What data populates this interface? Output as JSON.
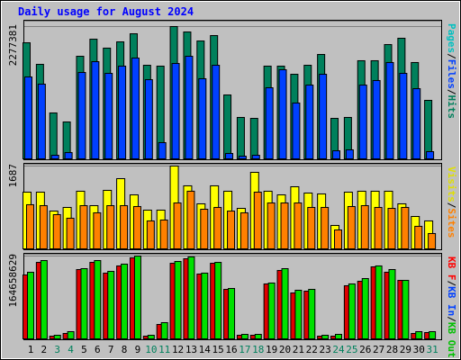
{
  "chart_data": [
    {
      "type": "bar",
      "title": "Daily usage for August 2024",
      "ylim": [
        0,
        2277381
      ],
      "yticks": [
        2277381
      ],
      "legend": [
        {
          "name": "Pages",
          "color": "#00c0c0"
        },
        {
          "name": "Files",
          "color": "#0040ff"
        },
        {
          "name": "Hits",
          "color": "#00805c"
        }
      ],
      "legend_separator": "/",
      "series": [
        {
          "color": "#00805c",
          "values": [
            1998000,
            1627000,
            790000,
            635000,
            1766000,
            2060000,
            1906000,
            2014000,
            2153000,
            1611000,
            1596000,
            2277381,
            2184000,
            2029000,
            2122000,
            1100000,
            713000,
            697000,
            1596000,
            1596000,
            1456000,
            1611000,
            1797000,
            697000,
            713000,
            1689000,
            1689000,
            1967000,
            2076000,
            1658000,
            1007000
          ]
        },
        {
          "color": "#0040ff",
          "values": [
            1410000,
            1286000,
            62000,
            108000,
            1487000,
            1673000,
            1472000,
            1596000,
            1735000,
            1363000,
            279000,
            1642000,
            1766000,
            1379000,
            1611000,
            93000,
            46000,
            62000,
            1224000,
            1534000,
            961000,
            1270000,
            1456000,
            139000,
            155000,
            1270000,
            1348000,
            1658000,
            1472000,
            1208000,
            124000
          ]
        }
      ]
    },
    {
      "type": "bar",
      "ylim": [
        0,
        1687
      ],
      "yticks": [
        1687
      ],
      "legend": [
        {
          "name": "Visits",
          "color": "#e0e000"
        },
        {
          "name": "Sites",
          "color": "#ff8000"
        }
      ],
      "legend_separator": "/",
      "series": [
        {
          "color": "#ffff00",
          "values": [
            1155,
            1155,
            770,
            844,
            1174,
            880,
            1192,
            1430,
            1100,
            789,
            789,
            1687,
            1284,
            917,
            1284,
            1174,
            825,
            1559,
            1174,
            1100,
            1265,
            1137,
            1119,
            477,
            1155,
            1174,
            1174,
            1174,
            917,
            660,
            569
          ]
        },
        {
          "color": "#ff8000",
          "values": [
            899,
            880,
            697,
            624,
            880,
            734,
            880,
            880,
            862,
            569,
            587,
            935,
            1174,
            807,
            844,
            770,
            734,
            1155,
            935,
            935,
            935,
            844,
            844,
            385,
            862,
            880,
            844,
            825,
            844,
            459,
            312
          ]
        }
      ]
    },
    {
      "type": "bar",
      "ylim": [
        0,
        164658629
      ],
      "yticks": [
        164658629
      ],
      "legend": [
        {
          "name": "KB F",
          "color": "#ff0000"
        },
        {
          "name": "KB In",
          "color": "#0040ff"
        },
        {
          "name": "KB Out",
          "color": "#00c000"
        }
      ],
      "legend_separator": "/",
      "categories": [
        "1",
        "2",
        "3",
        "4",
        "5",
        "6",
        "7",
        "8",
        "9",
        "10",
        "11",
        "12",
        "13",
        "14",
        "15",
        "16",
        "17",
        "18",
        "19",
        "20",
        "21",
        "22",
        "23",
        "24",
        "25",
        "26",
        "27",
        "28",
        "29",
        "30",
        "31"
      ],
      "category_colors": [
        "#000000",
        "#000000",
        "#00805c",
        "#00805c",
        "#000000",
        "#000000",
        "#000000",
        "#000000",
        "#000000",
        "#00805c",
        "#00805c",
        "#000000",
        "#000000",
        "#000000",
        "#000000",
        "#000000",
        "#00805c",
        "#00805c",
        "#000000",
        "#000000",
        "#000000",
        "#000000",
        "#000000",
        "#00805c",
        "#00805c",
        "#000000",
        "#000000",
        "#000000",
        "#000000",
        "#000000",
        "#00805c"
      ],
      "series": [
        {
          "color": "#e00000",
          "values": [
            127100000,
            152100000,
            5370000,
            10740000,
            137800000,
            152100000,
            130700000,
            145000000,
            161100000,
            5370000,
            28640000,
            150300000,
            159300000,
            128900000,
            150300000,
            98440000,
            7160000,
            7160000,
            109200000,
            136000000,
            91280000,
            94860000,
            5370000,
            5370000,
            105600000,
            114500000,
            143200000,
            132500000,
            116300000,
            10740000,
            12530000
          ]
        },
        {
          "color": "#00e000",
          "values": [
            132400000,
            155700000,
            7160000,
            14320000,
            139600000,
            155700000,
            134200000,
            148600000,
            164658629,
            7160000,
            32220000,
            153900000,
            163000000,
            130700000,
            152100000,
            100200000,
            8950000,
            8950000,
            111000000,
            139600000,
            96650000,
            98440000,
            7160000,
            8950000,
            109200000,
            119900000,
            145000000,
            137800000,
            116300000,
            14320000,
            14320000
          ]
        }
      ]
    }
  ]
}
